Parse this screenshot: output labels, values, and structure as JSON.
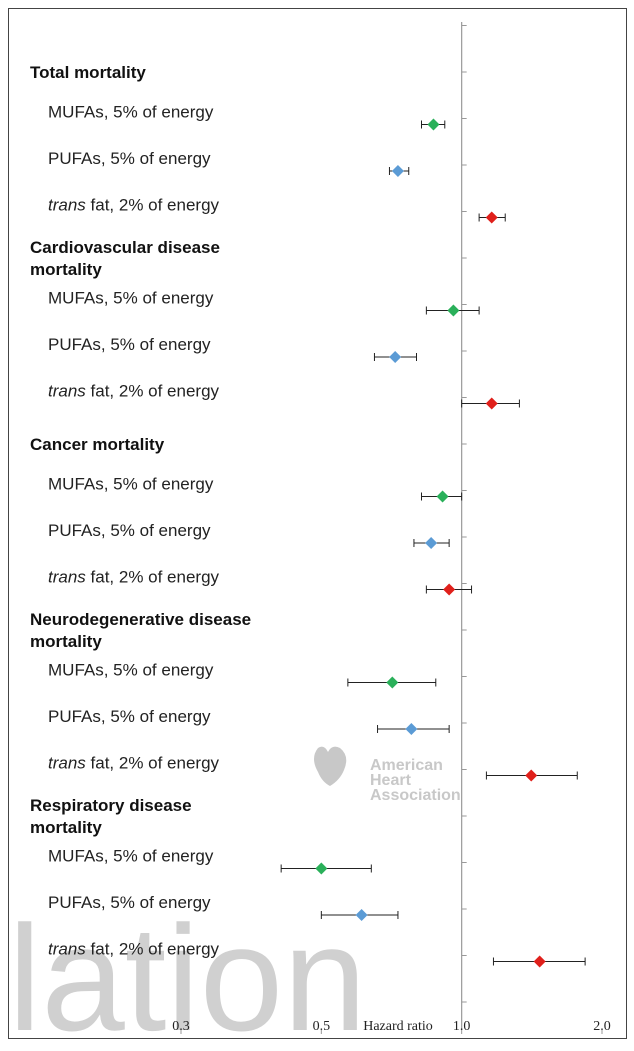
{
  "chart_data": {
    "type": "forest",
    "xlabel": "Hazard ratio",
    "log_x": true,
    "xlim": [
      0.25,
      2.0
    ],
    "xticks": [
      {
        "value": 0.25,
        "label": "0.3"
      },
      0.5,
      {
        "value": 1.0,
        "label": "1.0"
      },
      {
        "value": 2.0,
        "label": "2.0"
      }
    ],
    "reference": 1.0,
    "marker_colors": [
      "#2ab05a",
      "#5b9bd5",
      "#e0201b"
    ],
    "groups": [
      {
        "title": "Total mortality",
        "items": [
          {
            "label": "MUFAs, 5% of energy",
            "hr": 0.87,
            "ci": [
              0.82,
              0.92
            ]
          },
          {
            "label": "PUFAs, 5% of energy",
            "hr": 0.73,
            "ci": [
              0.7,
              0.77
            ]
          },
          {
            "label": {
              "em": "trans",
              "text": " fat, 2% of energy"
            },
            "hr": 1.16,
            "ci": [
              1.09,
              1.24
            ]
          }
        ]
      },
      {
        "title": "Cardiovascular disease\nmortality",
        "items": [
          {
            "label": "MUFAs, 5% of energy",
            "hr": 0.96,
            "ci": [
              0.84,
              1.09
            ]
          },
          {
            "label": "PUFAs, 5% of energy",
            "hr": 0.72,
            "ci": [
              0.65,
              0.8
            ]
          },
          {
            "label": {
              "em": "trans",
              "text": " fat, 2% of energy"
            },
            "hr": 1.16,
            "ci": [
              1.0,
              1.33
            ]
          }
        ]
      },
      {
        "title": "Cancer mortality",
        "items": [
          {
            "label": "MUFAs, 5% of energy",
            "hr": 0.91,
            "ci": [
              0.82,
              1.0
            ]
          },
          {
            "label": "PUFAs, 5% of energy",
            "hr": 0.86,
            "ci": [
              0.79,
              0.94
            ]
          },
          {
            "label": {
              "em": "trans",
              "text": " fat, 2% of energy"
            },
            "hr": 0.94,
            "ci": [
              0.84,
              1.05
            ]
          }
        ]
      },
      {
        "title": "Neurodegenerative disease\nmortality",
        "items": [
          {
            "label": "MUFAs, 5% of energy",
            "hr": 0.71,
            "ci": [
              0.57,
              0.88
            ]
          },
          {
            "label": "PUFAs, 5% of energy",
            "hr": 0.78,
            "ci": [
              0.66,
              0.94
            ]
          },
          {
            "label": {
              "em": "trans",
              "text": " fat, 2% of energy"
            },
            "hr": 1.41,
            "ci": [
              1.13,
              1.77
            ]
          }
        ]
      },
      {
        "title": "Respiratory disease\nmortality",
        "items": [
          {
            "label": "MUFAs, 5% of energy",
            "hr": 0.5,
            "ci": [
              0.41,
              0.64
            ]
          },
          {
            "label": "PUFAs, 5% of energy",
            "hr": 0.61,
            "ci": [
              0.5,
              0.73
            ]
          },
          {
            "label": {
              "em": "trans",
              "text": " fat, 2% of energy"
            },
            "hr": 1.47,
            "ci": [
              1.17,
              1.84
            ]
          }
        ]
      }
    ],
    "watermark": {
      "logo": [
        "American",
        "Heart",
        "Association"
      ],
      "word": "lation"
    }
  }
}
